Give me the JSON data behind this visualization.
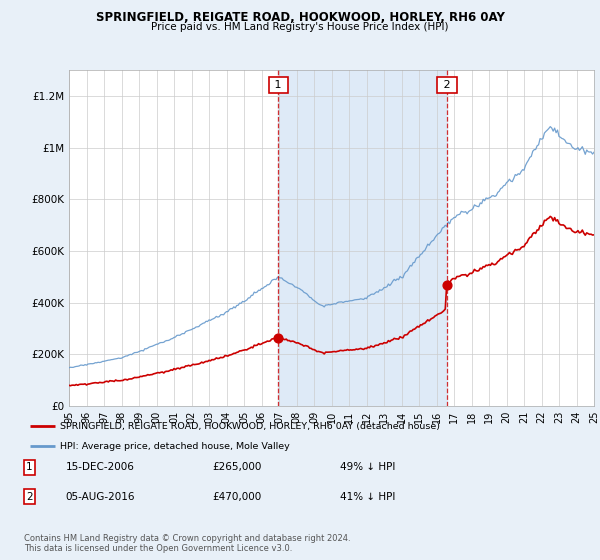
{
  "title": "SPRINGFIELD, REIGATE ROAD, HOOKWOOD, HORLEY, RH6 0AY",
  "subtitle": "Price paid vs. HM Land Registry's House Price Index (HPI)",
  "legend_line1": "SPRINGFIELD, REIGATE ROAD, HOOKWOOD, HORLEY, RH6 0AY (detached house)",
  "legend_line2": "HPI: Average price, detached house, Mole Valley",
  "annotation1_date": "15-DEC-2006",
  "annotation1_price": "£265,000",
  "annotation1_hpi": "49% ↓ HPI",
  "annotation2_date": "05-AUG-2016",
  "annotation2_price": "£470,000",
  "annotation2_hpi": "41% ↓ HPI",
  "footnote": "Contains HM Land Registry data © Crown copyright and database right 2024.\nThis data is licensed under the Open Government Licence v3.0.",
  "red_color": "#cc0000",
  "blue_color": "#6699cc",
  "shade_color": "#deeaf7",
  "background_color": "#e8f0f8",
  "plot_bg_color": "#ffffff",
  "ylim": [
    0,
    1300000
  ],
  "yticks": [
    0,
    200000,
    400000,
    600000,
    800000,
    1000000,
    1200000
  ],
  "ytick_labels": [
    "£0",
    "£200K",
    "£400K",
    "£600K",
    "£800K",
    "£1M",
    "£1.2M"
  ],
  "xstart_year": 1995,
  "xend_year": 2025,
  "purchase1_year": 2006.96,
  "purchase1_price": 265000,
  "purchase2_year": 2016.59,
  "purchase2_price": 470000
}
